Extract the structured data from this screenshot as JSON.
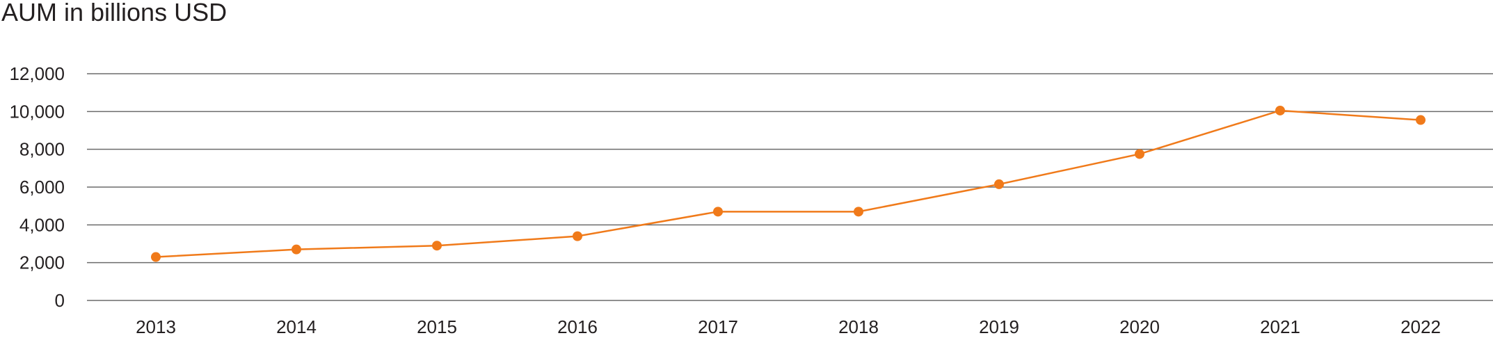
{
  "chart_data": {
    "type": "line",
    "title": "AUM in billions USD",
    "xlabel": "",
    "ylabel": "",
    "categories": [
      "2013",
      "2014",
      "2015",
      "2016",
      "2017",
      "2018",
      "2019",
      "2020",
      "2021",
      "2022"
    ],
    "series": [
      {
        "values": [
          2300,
          2700,
          2900,
          3400,
          4700,
          4700,
          6150,
          7750,
          10050,
          9550
        ],
        "color": "#f07a1a"
      }
    ],
    "ylim": [
      0,
      12000
    ],
    "yticks": [
      "0",
      "2,000",
      "4,000",
      "6,000",
      "8,000",
      "10,000",
      "12,000"
    ],
    "grid": true,
    "legend": "none",
    "colors": {
      "text": "#231f20",
      "grid": "#6b6b6b",
      "series": "#f07a1a"
    }
  }
}
